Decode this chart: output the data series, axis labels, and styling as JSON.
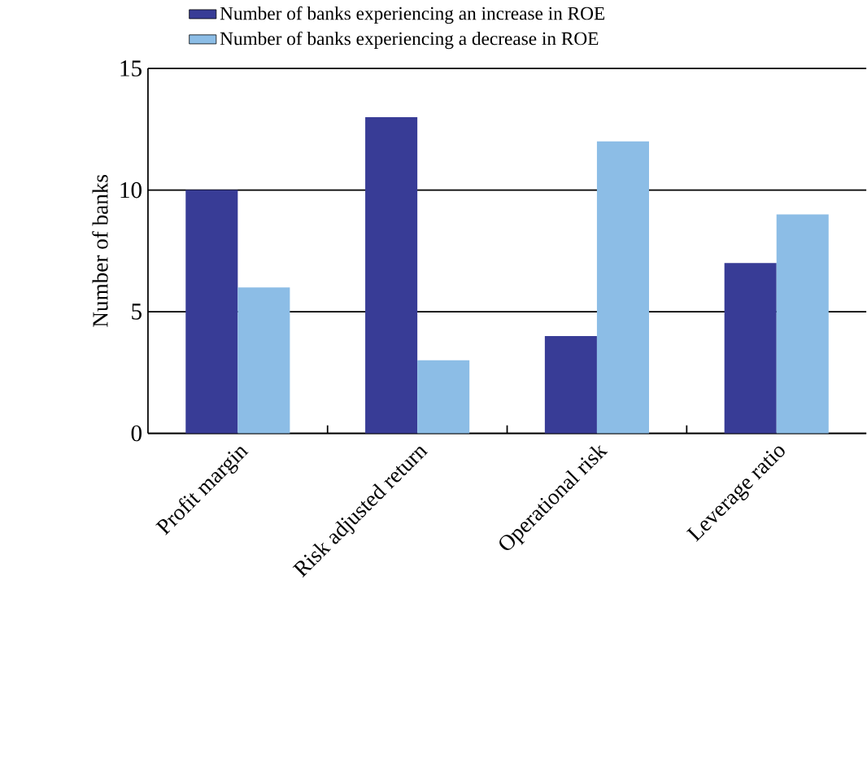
{
  "chart_data": {
    "type": "bar",
    "ylabel": "Number of banks",
    "categories": [
      "Profit margin",
      "Risk adjusted return",
      "Operational risk",
      "Leverage ratio"
    ],
    "series": [
      {
        "name": "Number of banks experiencing an increase in ROE",
        "color": "#383c96",
        "values": [
          10,
          13,
          4,
          7
        ]
      },
      {
        "name": "Number of banks experiencing a decrease in ROE",
        "color": "#8cbde6",
        "values": [
          6,
          3,
          12,
          9
        ]
      }
    ],
    "ylim": [
      0,
      15
    ],
    "yticks": [
      0,
      5,
      10,
      15
    ],
    "grid": "y",
    "legend": "top"
  }
}
